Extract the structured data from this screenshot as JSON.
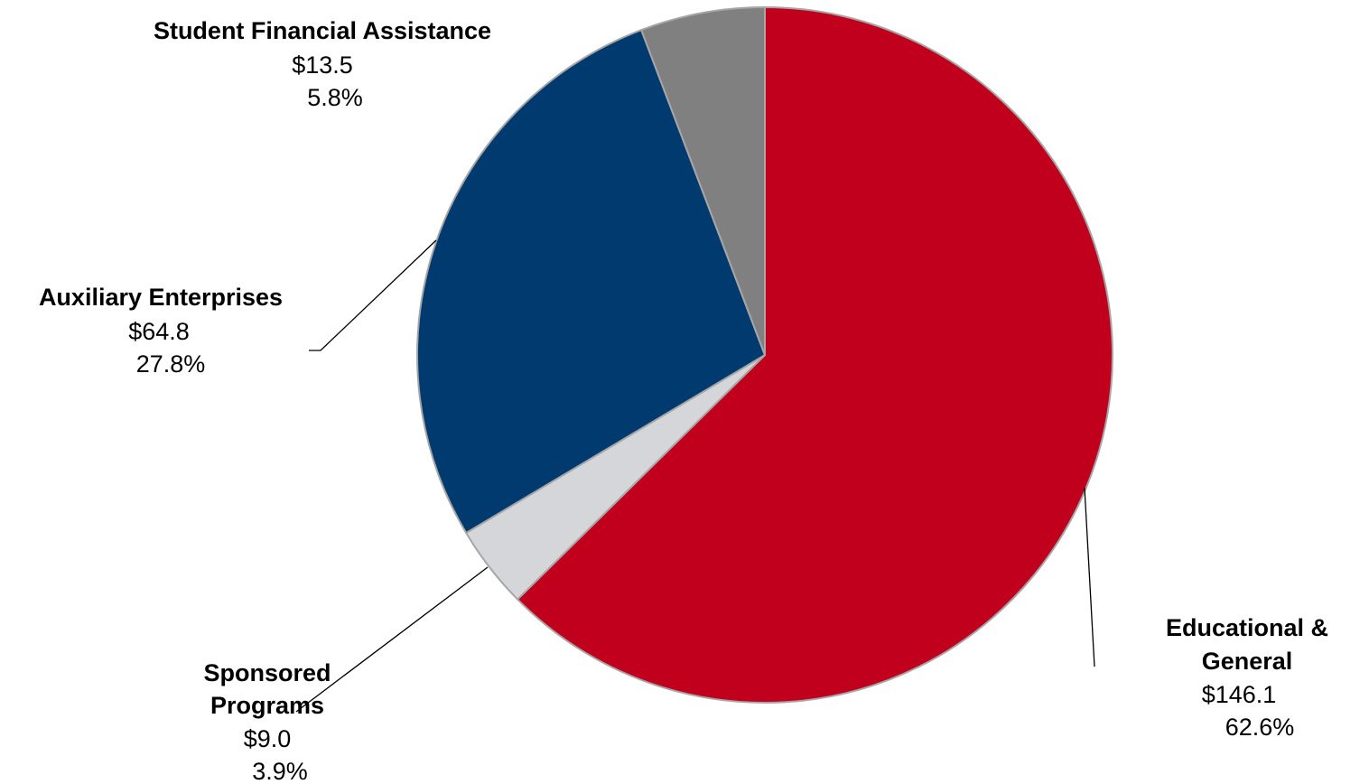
{
  "chart_data": {
    "type": "pie",
    "title": "",
    "slices": [
      {
        "name_lines": [
          "Educational &",
          "General"
        ],
        "amount": "$146.1",
        "percent": "62.6%",
        "value": 146.1,
        "color": "#C0001C"
      },
      {
        "name_lines": [
          "Sponsored",
          "Programs"
        ],
        "amount": "$9.0",
        "percent": "3.9%",
        "value": 9.0,
        "color": "#D4D6D9"
      },
      {
        "name_lines": [
          "Auxiliary Enterprises"
        ],
        "amount": "$64.8",
        "percent": "27.8%",
        "value": 64.8,
        "color": "#003A6F"
      },
      {
        "name_lines": [
          "Student Financial Assistance"
        ],
        "amount": "$13.5",
        "percent": "5.8%",
        "value": 13.5,
        "color": "#808080"
      }
    ],
    "start_angle": "12 o'clock",
    "direction": "clockwise",
    "slice_border_color": "#A6A6A6",
    "legend": "none"
  }
}
